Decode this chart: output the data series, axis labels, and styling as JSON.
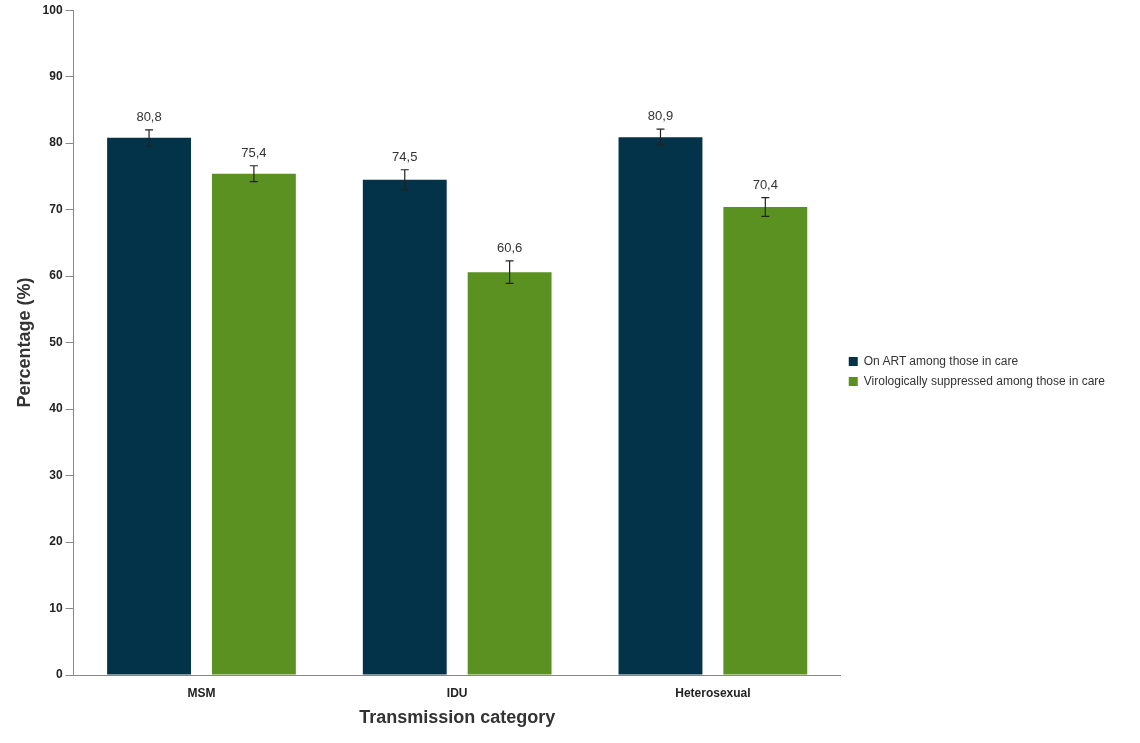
{
  "chart_data": {
    "type": "bar",
    "xlabel": "Transmission category",
    "ylabel": "Percentage (%)",
    "categories": [
      "MSM",
      "IDU",
      "Heterosexual"
    ],
    "series": [
      {
        "name": "On ART among those in care",
        "color": "#023349",
        "values": [
          80.8,
          74.5,
          80.9
        ],
        "errors": [
          1.2,
          1.5,
          1.2
        ],
        "value_labels": [
          "80,8",
          "74,5",
          "80,9"
        ]
      },
      {
        "name": "Virologically suppressed among those in care",
        "color": "#5b9121",
        "values": [
          75.4,
          60.6,
          70.4
        ],
        "errors": [
          1.2,
          1.7,
          1.4
        ],
        "value_labels": [
          "75,4",
          "60,6",
          "70,4"
        ]
      }
    ],
    "ylim": [
      0,
      100
    ],
    "yticks": [
      0,
      10,
      20,
      30,
      40,
      50,
      60,
      70,
      80,
      90,
      100
    ],
    "grid": false,
    "legend": "right"
  }
}
